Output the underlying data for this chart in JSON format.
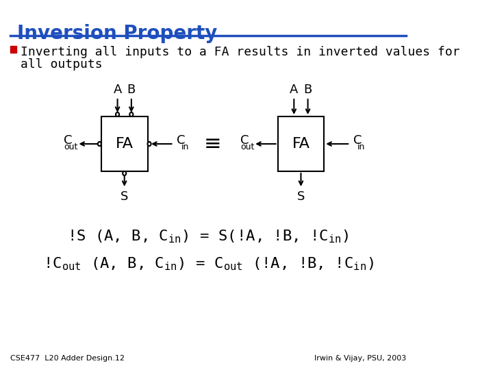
{
  "title": "Inversion Property",
  "title_color": "#1F4FBE",
  "title_underline_color": "#1F4FBE",
  "bullet_text_line1": "Inverting all inputs to a FA results in inverted values for",
  "bullet_text_line2": "all outputs",
  "bullet_color": "#CC0000",
  "bg_color": "#FFFFFF",
  "text_color": "#000000",
  "fa_box_color": "#FFFFFF",
  "fa_box_edge": "#000000",
  "footer_left": "CSE477  L20 Adder Design.12",
  "footer_right": "Irwin & Vijay, PSU, 2003",
  "eq1": "!S (A, B, C",
  "eq1_sub1": "in",
  "eq1_mid": ") = S(!A, !B, !C",
  "eq1_sub2": "in",
  "eq1_end": ")",
  "eq2": "!C",
  "eq2_sub1": "out",
  "eq2_mid": " (A, B, C",
  "eq2_sub2": "in",
  "eq2_mid2": ") = C",
  "eq2_sub3": "out",
  "eq2_end": " (!A, !B, !C",
  "eq2_sub4": "in",
  "eq2_end2": ")"
}
